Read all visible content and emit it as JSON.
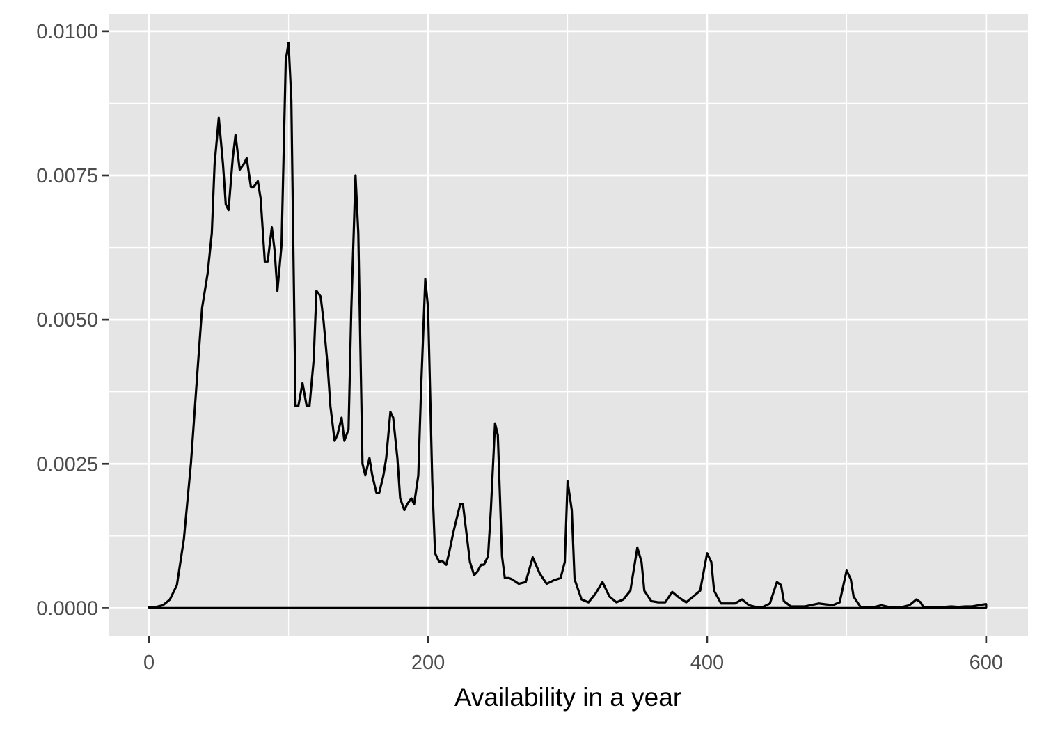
{
  "chart_data": {
    "type": "area",
    "title": "",
    "xlabel": "Availability in a year",
    "ylabel": "",
    "xlim": [
      -29,
      630
    ],
    "ylim": [
      -0.00049,
      0.0103
    ],
    "x_ticks": [
      {
        "value": 0,
        "label": "0"
      },
      {
        "value": 200,
        "label": "200"
      },
      {
        "value": 400,
        "label": "400"
      },
      {
        "value": 600,
        "label": "600"
      }
    ],
    "y_ticks": [
      {
        "value": 0.0,
        "label": "0.0000"
      },
      {
        "value": 0.0025,
        "label": "0.0025"
      },
      {
        "value": 0.005,
        "label": "0.0050"
      },
      {
        "value": 0.0075,
        "label": "0.0075"
      },
      {
        "value": 0.01,
        "label": "0.0100"
      }
    ],
    "grid": true,
    "colors": {
      "panel": "#e5e5e5",
      "grid": "#ffffff",
      "line": "#000000"
    },
    "series": [
      {
        "x": [
          0,
          5,
          10,
          15,
          20,
          25,
          30,
          35,
          38,
          42,
          45,
          47,
          50,
          53,
          55,
          57,
          60,
          62,
          65,
          68,
          70,
          73,
          75,
          78,
          80,
          83,
          85,
          88,
          90,
          92,
          95,
          98,
          100,
          102,
          105,
          107,
          110,
          113,
          115,
          118,
          120,
          123,
          125,
          128,
          130,
          133,
          135,
          138,
          140,
          143,
          145,
          148,
          150,
          153,
          155,
          158,
          160,
          163,
          165,
          168,
          170,
          173,
          175,
          178,
          180,
          183,
          185,
          188,
          190,
          193,
          195,
          198,
          200,
          203,
          205,
          208,
          210,
          213,
          215,
          218,
          220,
          223,
          225,
          228,
          230,
          233,
          235,
          238,
          240,
          243,
          245,
          248,
          250,
          253,
          255,
          258,
          260,
          265,
          270,
          275,
          280,
          285,
          290,
          295,
          298,
          300,
          303,
          305,
          310,
          315,
          320,
          325,
          330,
          335,
          340,
          345,
          350,
          353,
          355,
          360,
          365,
          370,
          375,
          380,
          385,
          390,
          395,
          400,
          403,
          405,
          410,
          420,
          425,
          430,
          435,
          440,
          445,
          450,
          453,
          455,
          460,
          470,
          480,
          490,
          495,
          500,
          503,
          505,
          510,
          520,
          525,
          530,
          540,
          545,
          550,
          553,
          555,
          560,
          570,
          575,
          580,
          585,
          590,
          595,
          600
        ],
        "y": [
          2e-05,
          2e-05,
          5e-05,
          0.00015,
          0.0004,
          0.0012,
          0.0025,
          0.0042,
          0.0052,
          0.0058,
          0.0065,
          0.0077,
          0.0085,
          0.0077,
          0.007,
          0.0069,
          0.0078,
          0.0082,
          0.0076,
          0.0077,
          0.0078,
          0.0073,
          0.0073,
          0.0074,
          0.0071,
          0.006,
          0.006,
          0.0066,
          0.0062,
          0.0055,
          0.0063,
          0.0095,
          0.0098,
          0.0088,
          0.0035,
          0.0035,
          0.0039,
          0.0035,
          0.0035,
          0.0043,
          0.0055,
          0.0054,
          0.005,
          0.0042,
          0.0035,
          0.0029,
          0.003,
          0.0033,
          0.0029,
          0.0031,
          0.0052,
          0.0075,
          0.0065,
          0.0025,
          0.0023,
          0.0026,
          0.0023,
          0.002,
          0.002,
          0.0023,
          0.0026,
          0.0034,
          0.0033,
          0.0026,
          0.0019,
          0.0017,
          0.0018,
          0.0019,
          0.0018,
          0.0023,
          0.0038,
          0.0057,
          0.0052,
          0.0022,
          0.00095,
          0.0008,
          0.00082,
          0.00075,
          0.00095,
          0.0013,
          0.0015,
          0.0018,
          0.0018,
          0.0012,
          0.0008,
          0.00057,
          0.00062,
          0.00075,
          0.00075,
          0.0009,
          0.0017,
          0.0032,
          0.003,
          0.0009,
          0.00052,
          0.00052,
          0.0005,
          0.00042,
          0.00045,
          0.00088,
          0.0006,
          0.00042,
          0.00048,
          0.00052,
          0.0008,
          0.0022,
          0.0017,
          0.0005,
          0.00015,
          0.0001,
          0.00025,
          0.00045,
          0.0002,
          0.0001,
          0.00015,
          0.0003,
          0.00105,
          0.0008,
          0.0003,
          0.00012,
          0.0001,
          0.0001,
          0.00028,
          0.00018,
          0.0001,
          0.0002,
          0.0003,
          0.00095,
          0.0008,
          0.0003,
          8e-05,
          8e-05,
          0.00015,
          5e-05,
          2e-05,
          2e-05,
          8e-05,
          0.00045,
          0.0004,
          0.00012,
          3e-05,
          3e-05,
          8e-05,
          5e-05,
          0.0001,
          0.00065,
          0.0005,
          0.0002,
          2e-05,
          2e-05,
          5e-05,
          2e-05,
          2e-05,
          5e-05,
          0.00015,
          0.0001,
          2e-05,
          2e-05,
          2e-05,
          3e-05,
          2e-05,
          3e-05,
          3e-05,
          5e-05,
          7e-05
        ]
      }
    ]
  }
}
